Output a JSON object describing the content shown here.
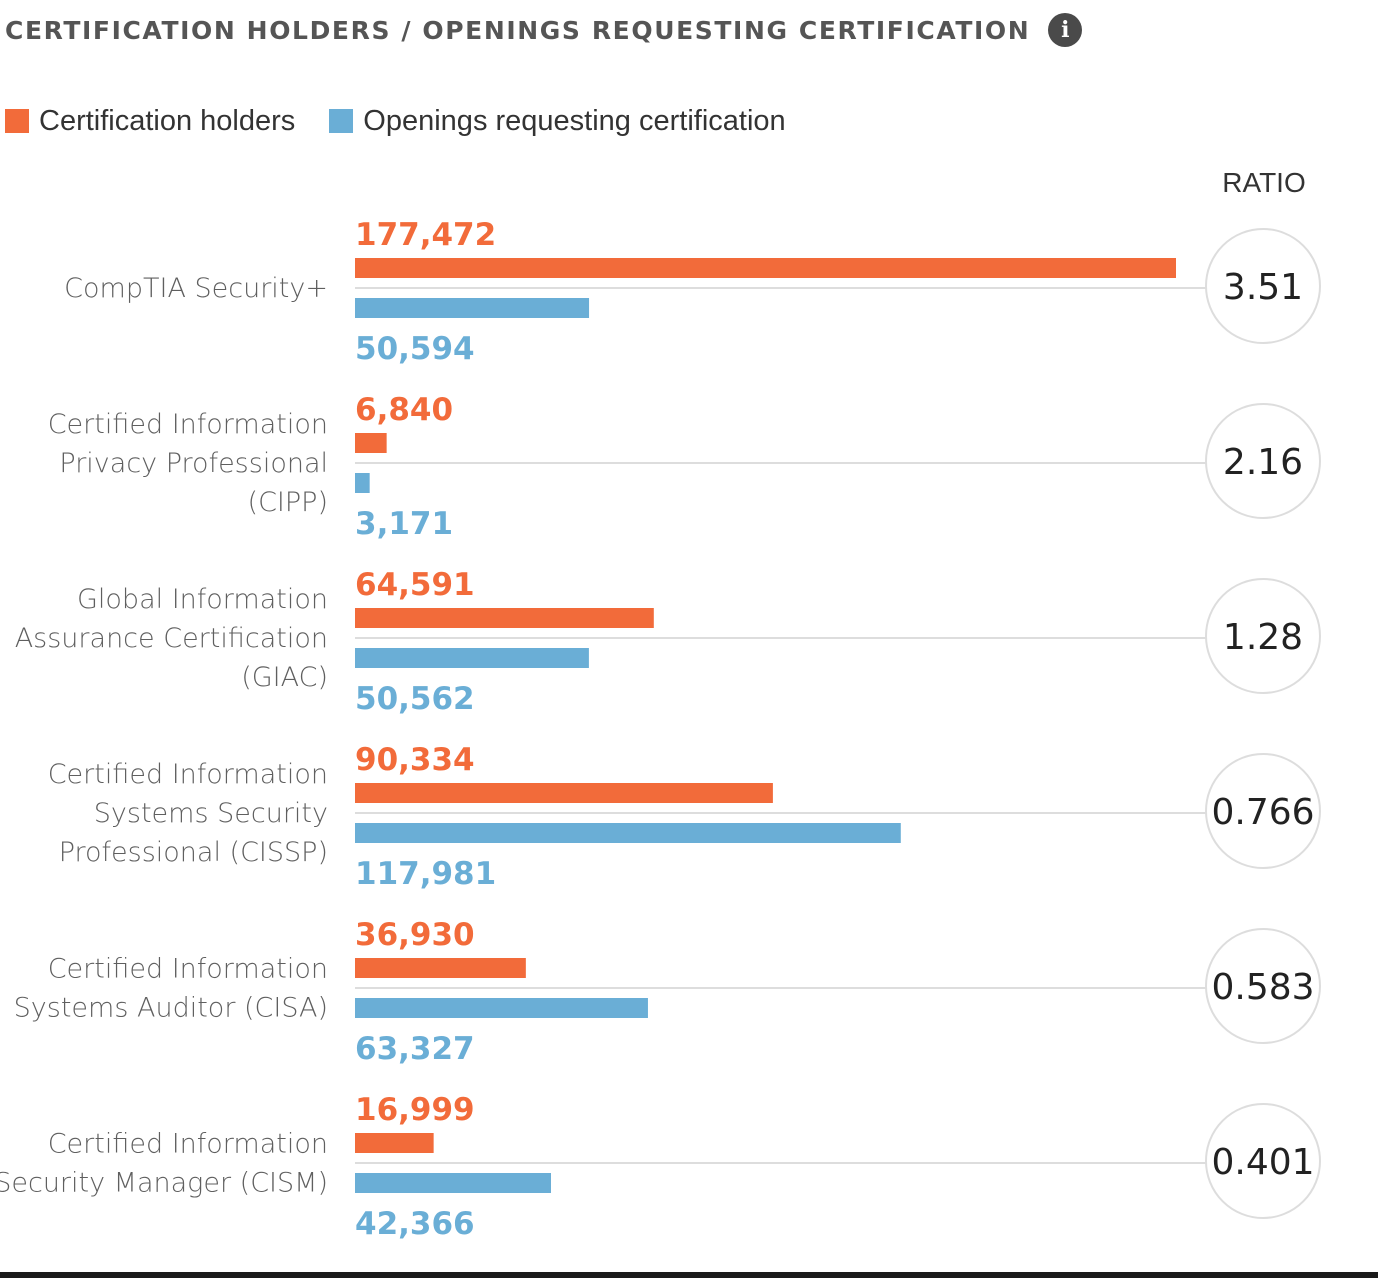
{
  "header": {
    "title": "CERTIFICATION HOLDERS / OPENINGS REQUESTING CERTIFICATION",
    "info_icon": "info-icon"
  },
  "colors": {
    "holders": "#f26b3a",
    "openings": "#6aaed6",
    "gridline": "#dddddd",
    "circle_border": "#dddddd"
  },
  "chart_data": {
    "type": "bar",
    "orientation": "horizontal",
    "legend_position": "top-left",
    "ratio_header": "RATIO",
    "categories": [
      [
        "CompTIA Security+"
      ],
      [
        "Certified Information",
        "Privacy Professional",
        "(CIPP)"
      ],
      [
        "Global Information",
        "Assurance Certification",
        "(GIAC)"
      ],
      [
        "Certified Information",
        "Systems Security",
        "Professional (CISSP)"
      ],
      [
        "Certified Information",
        "Systems Auditor (CISA)"
      ],
      [
        "Certified Information",
        "Security Manager (CISM)"
      ]
    ],
    "series": [
      {
        "name": "Certification holders",
        "values": [
          177472,
          6840,
          64591,
          90334,
          36930,
          16999
        ],
        "labels": [
          "177,472",
          "6,840",
          "64,591",
          "90,334",
          "36,930",
          "16,999"
        ]
      },
      {
        "name": "Openings requesting certification",
        "values": [
          50594,
          3171,
          50562,
          117981,
          63327,
          42366
        ],
        "labels": [
          "50,594",
          "3,171",
          "50,562",
          "117,981",
          "63,327",
          "42,366"
        ]
      }
    ],
    "ratios": [
      "3.51",
      "2.16",
      "1.28",
      "0.766",
      "0.583",
      "0.401"
    ],
    "xlim": [
      0,
      177472
    ]
  }
}
